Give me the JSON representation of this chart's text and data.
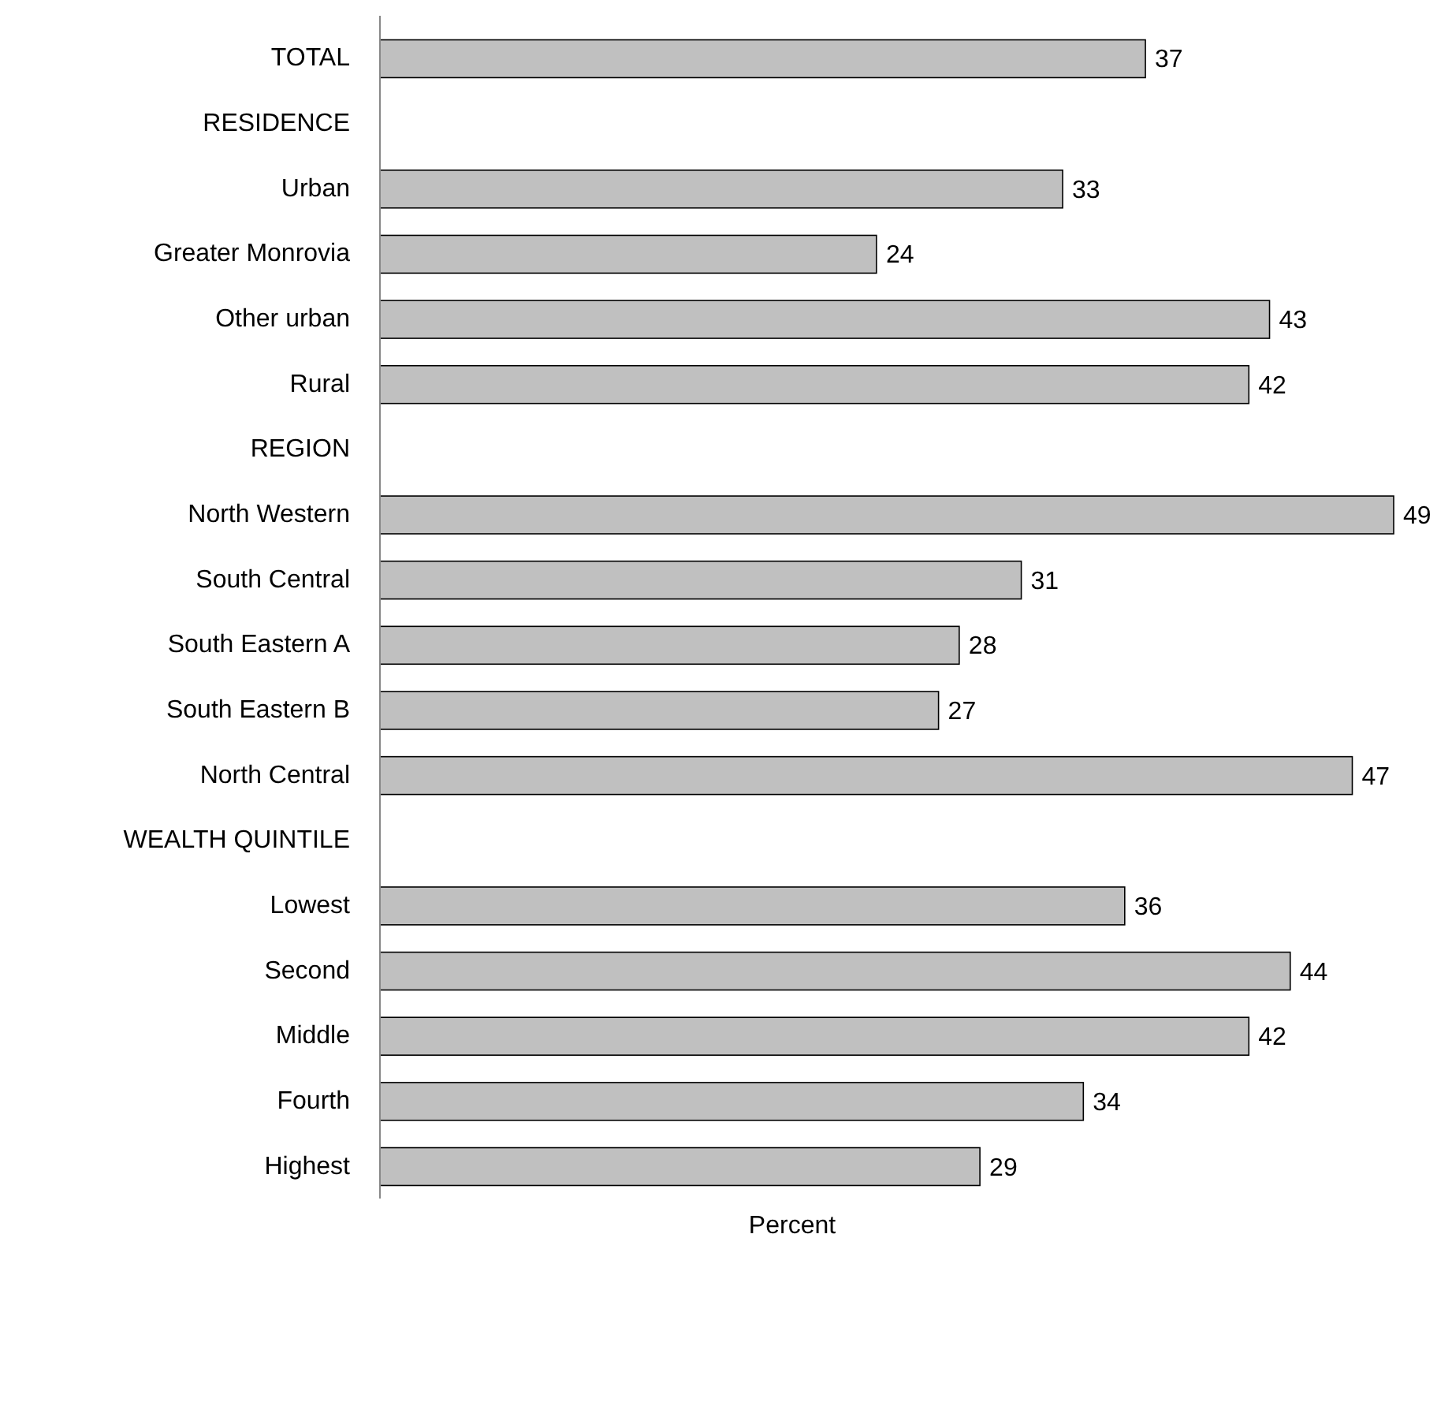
{
  "chart_data": {
    "type": "bar",
    "orientation": "horizontal",
    "xlabel": "Percent",
    "color": "#c0c0c0",
    "data_labels": true,
    "categories": [
      "TOTAL",
      "RESIDENCE",
      "Urban",
      "Greater Monrovia",
      "Other urban",
      "Rural",
      "REGION",
      "North Western",
      "South Central",
      "South Eastern A",
      "South Eastern B",
      "North Central",
      "WEALTH QUINTILE",
      "Lowest",
      "Second",
      "Middle",
      "Fourth",
      "Highest"
    ],
    "values": [
      37,
      null,
      33,
      24,
      43,
      42,
      null,
      49,
      31,
      28,
      27,
      47,
      null,
      36,
      44,
      42,
      34,
      29
    ]
  }
}
